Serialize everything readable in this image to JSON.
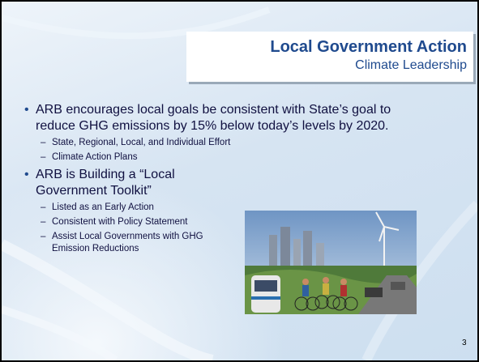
{
  "slide": {
    "title": "Local Government Action",
    "subtitle": "Climate Leadership",
    "bullets": [
      {
        "text": "ARB encourages local goals be consistent with State’s goal to reduce GHG emissions by 15% below today’s levels by 2020.",
        "subitems": [
          "State, Regional, Local, and Individual Effort",
          "Climate Action Plans"
        ]
      },
      {
        "text": "ARB is Building a “Local Government Toolkit”",
        "subitems": [
          "Listed as an Early Action",
          "Consistent with Policy Statement",
          "Assist Local Governments with GHG Emission Reductions"
        ]
      }
    ],
    "page_number": "3"
  }
}
